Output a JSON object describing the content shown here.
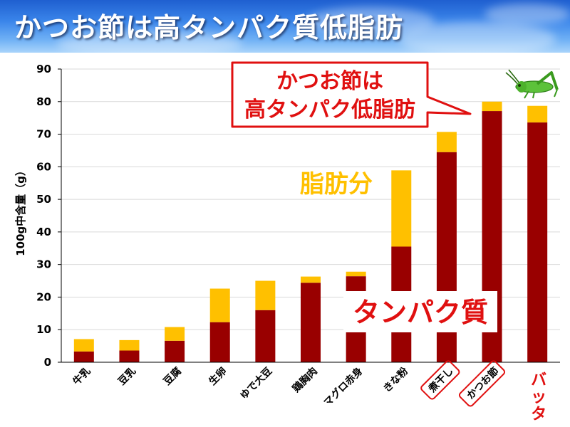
{
  "title": "かつお節は高タンパク質低脂肪",
  "callout": {
    "line1": "かつお節は",
    "line2": "高タンパク低脂肪"
  },
  "labels": {
    "fat": "脂肪分",
    "protein": "タンパク質"
  },
  "colors": {
    "protein": "#990000",
    "fat": "#ffc000",
    "highlight": "#e01010",
    "axis": "#000000"
  },
  "icons": {
    "grasshopper": "grasshopper-icon"
  },
  "chart_data": {
    "type": "bar",
    "stacked": true,
    "categories": [
      "牛乳",
      "豆乳",
      "豆腐",
      "生卵",
      "ゆで大豆",
      "鶏胸肉",
      "マグロ赤身",
      "きな粉",
      "煮干し",
      "かつお節",
      "バッタ"
    ],
    "highlighted_categories": [
      "煮干し",
      "かつお節"
    ],
    "red_label_categories": [
      "バッタ"
    ],
    "series": [
      {
        "name": "タンパク質",
        "values": [
          3.3,
          3.6,
          6.6,
          12.3,
          16.0,
          24.4,
          26.4,
          35.5,
          64.5,
          77.1,
          73.6
        ]
      },
      {
        "name": "脂肪分",
        "values": [
          3.8,
          3.2,
          4.2,
          10.3,
          9.0,
          1.9,
          1.4,
          23.4,
          6.2,
          2.9,
          5.1
        ]
      }
    ],
    "ylabel": "100g中含量（g）",
    "ylim": [
      0,
      90
    ],
    "yticks": [
      0,
      10,
      20,
      30,
      40,
      50,
      60,
      70,
      80,
      90
    ],
    "grid": true
  }
}
